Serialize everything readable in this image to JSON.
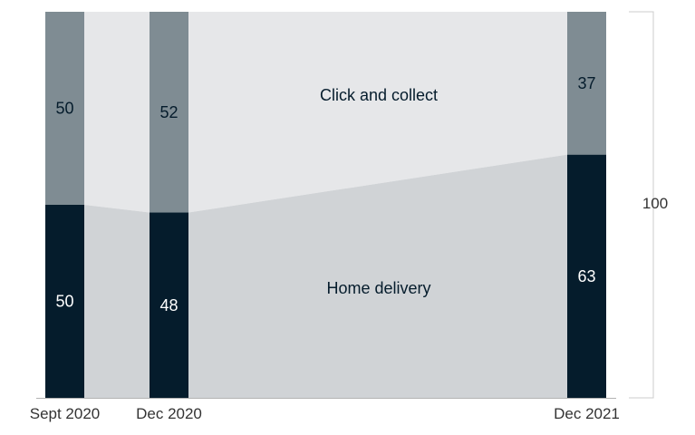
{
  "chart_data": {
    "type": "bar",
    "stacked": true,
    "normalized_to": 100,
    "categories": [
      "Sept 2020",
      "Dec 2020",
      "Dec 2021"
    ],
    "series": [
      {
        "name": "Home delivery",
        "values": [
          50,
          48,
          63
        ]
      },
      {
        "name": "Click and collect",
        "values": [
          50,
          52,
          37
        ]
      }
    ],
    "axis_note": "100",
    "ylim": [
      0,
      100
    ]
  },
  "colors": {
    "home_delivery_bar": "#051c2c",
    "click_collect_bar": "#7f8c93",
    "home_delivery_band": "#d0d3d6",
    "click_collect_band": "#e6e7e9",
    "bar_text": "#ffffff",
    "upper_text": "#051c2c",
    "axis": "#b3b3b3",
    "bracket": "#cccccc"
  }
}
